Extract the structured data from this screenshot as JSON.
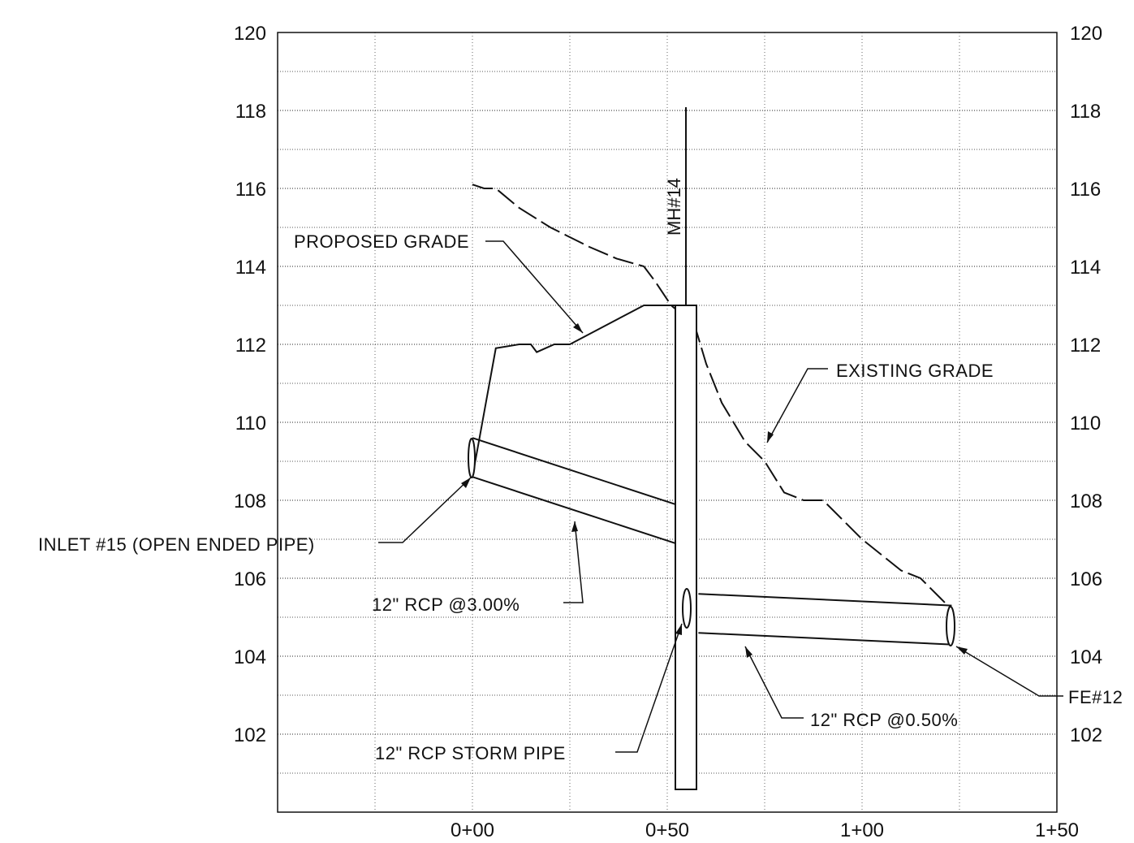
{
  "elevation_axis": {
    "left_ticks": [
      "120",
      "118",
      "116",
      "114",
      "112",
      "110",
      "108",
      "106",
      "104",
      "102"
    ],
    "right_ticks": [
      "120",
      "118",
      "116",
      "114",
      "112",
      "110",
      "108",
      "106",
      "104",
      "102"
    ]
  },
  "station_axis": {
    "ticks": [
      "0+00",
      "0+50",
      "1+00",
      "1+50"
    ]
  },
  "annotations": {
    "manhole": "MH#14",
    "proposed_grade": "PROPOSED GRADE",
    "existing_grade": "EXISTING GRADE",
    "inlet": "INLET #15 (OPEN ENDED PIPE)",
    "pipe_upstream": "12\" RCP @3.00%",
    "pipe_downstream": "12\" RCP @0.50%",
    "storm_pipe": "12\" RCP STORM PIPE",
    "flared_end": "FE#12"
  },
  "chart_data": {
    "type": "profile",
    "x_unit": "station (ft)",
    "y_unit": "elevation (ft)",
    "xlim": [
      -50,
      150
    ],
    "ylim": [
      100,
      120
    ],
    "x_ticks": [
      0,
      50,
      100,
      150
    ],
    "y_ticks": [
      102,
      104,
      106,
      108,
      110,
      112,
      114,
      116,
      118,
      120
    ],
    "grid": true,
    "series": [
      {
        "name": "EXISTING GRADE",
        "style": "dashed",
        "points": [
          [
            0,
            116.1
          ],
          [
            3,
            116.0
          ],
          [
            6,
            116.0
          ],
          [
            12,
            115.5
          ],
          [
            20,
            115.0
          ],
          [
            24,
            114.8
          ],
          [
            30,
            114.5
          ],
          [
            37,
            114.2
          ],
          [
            44,
            114.0
          ],
          [
            47,
            113.6
          ],
          [
            51,
            113.0
          ],
          [
            57,
            112.5
          ],
          [
            60,
            111.5
          ],
          [
            64,
            110.5
          ],
          [
            67,
            110.0
          ],
          [
            70,
            109.5
          ],
          [
            75,
            109.0
          ],
          [
            80,
            108.2
          ],
          [
            85,
            108.0
          ],
          [
            90,
            108.0
          ],
          [
            95,
            107.5
          ],
          [
            100,
            107.0
          ],
          [
            110,
            106.2
          ],
          [
            115,
            106.0
          ],
          [
            120,
            105.5
          ],
          [
            123,
            105.2
          ]
        ]
      },
      {
        "name": "PROPOSED GRADE",
        "style": "solid",
        "points": [
          [
            0,
            108.6
          ],
          [
            6,
            111.9
          ],
          [
            12,
            112.0
          ],
          [
            15,
            112.0
          ],
          [
            16.5,
            111.8
          ],
          [
            21,
            112.0
          ],
          [
            25,
            112.0
          ],
          [
            44,
            113.0
          ],
          [
            52,
            113.0
          ]
        ]
      },
      {
        "name": "12\" RCP @3.00%",
        "style": "pipe",
        "crown": [
          [
            0,
            109.6
          ],
          [
            52,
            107.9
          ]
        ],
        "invert": [
          [
            0,
            108.6
          ],
          [
            52,
            106.9
          ]
        ]
      },
      {
        "name": "12\" RCP @0.50%",
        "style": "pipe",
        "crown": [
          [
            58,
            105.6
          ],
          [
            123,
            105.3
          ]
        ],
        "invert": [
          [
            58,
            104.6
          ],
          [
            123,
            104.3
          ]
        ]
      }
    ],
    "structures": [
      {
        "name": "MH#14",
        "station": 55,
        "rim": 113.0,
        "bottom": 100.6,
        "top_line": 118.0
      },
      {
        "name": "INLET #15 (OPEN ENDED PIPE)",
        "station": 0,
        "elevation": 108.6
      },
      {
        "name": "FE#12",
        "station": 123,
        "elevation": 104.3
      }
    ]
  }
}
